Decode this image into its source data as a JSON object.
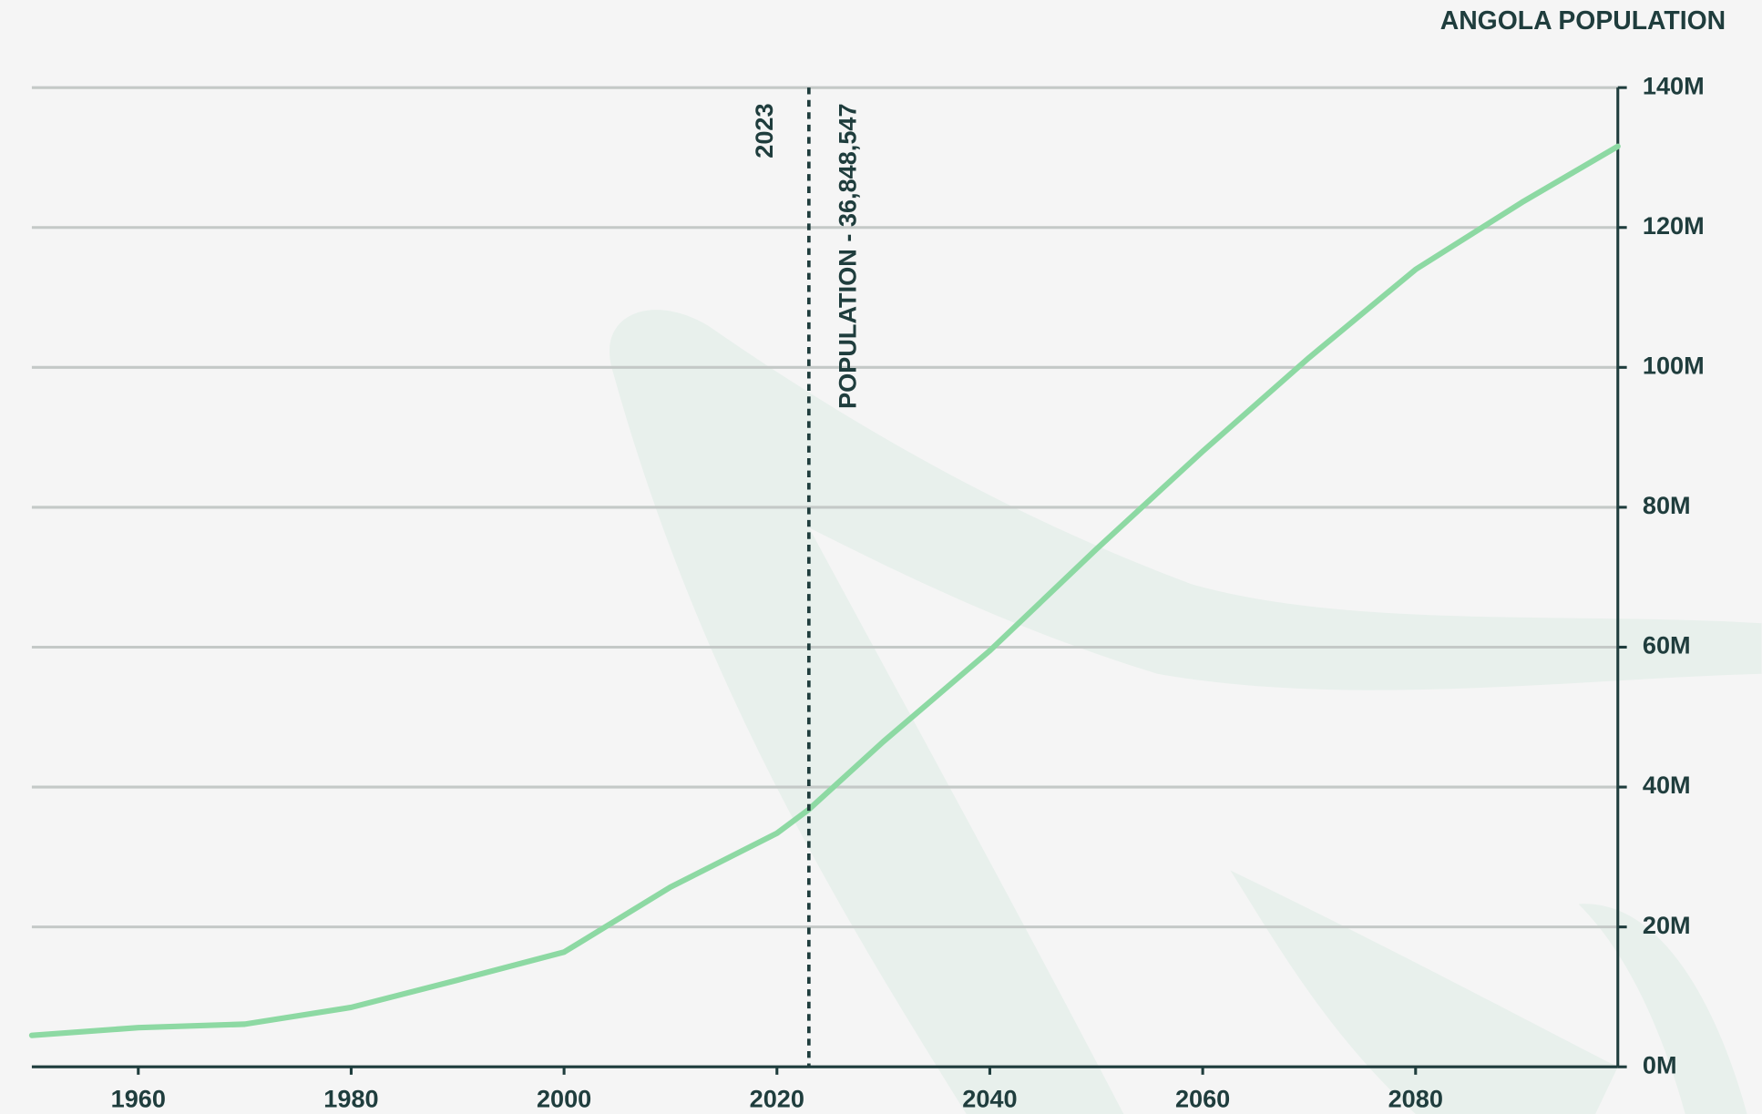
{
  "chart_data": {
    "type": "line",
    "title": "ANGOLA POPULATION",
    "x": [
      1950,
      1960,
      1970,
      1980,
      1990,
      2000,
      2010,
      2020,
      2023,
      2030,
      2040,
      2050,
      2060,
      2070,
      2080,
      2090,
      2099
    ],
    "series": [
      {
        "name": "Population",
        "color": "#8dd9a3",
        "values": [
          4.5,
          5.6,
          6.1,
          8.5,
          12.4,
          16.4,
          25.7,
          33.4,
          36.8,
          46.5,
          59.5,
          74,
          88,
          101.4,
          114,
          123.6,
          131.6
        ]
      }
    ],
    "xlim": [
      1950,
      2099
    ],
    "xticks": [
      1960,
      1980,
      2000,
      2020,
      2040,
      2060,
      2080
    ],
    "ylim": [
      0,
      140
    ],
    "yticks": [
      {
        "value": 0,
        "label": "0M"
      },
      {
        "value": 20,
        "label": "20M"
      },
      {
        "value": 40,
        "label": "40M"
      },
      {
        "value": 60,
        "label": "60M"
      },
      {
        "value": 80,
        "label": "80M"
      },
      {
        "value": 100,
        "label": "100M"
      },
      {
        "value": 120,
        "label": "120M"
      },
      {
        "value": 140,
        "label": "140M"
      }
    ],
    "grid": true,
    "marker": {
      "x": 2023,
      "text": "POPULATION - 36,848,547"
    }
  }
}
